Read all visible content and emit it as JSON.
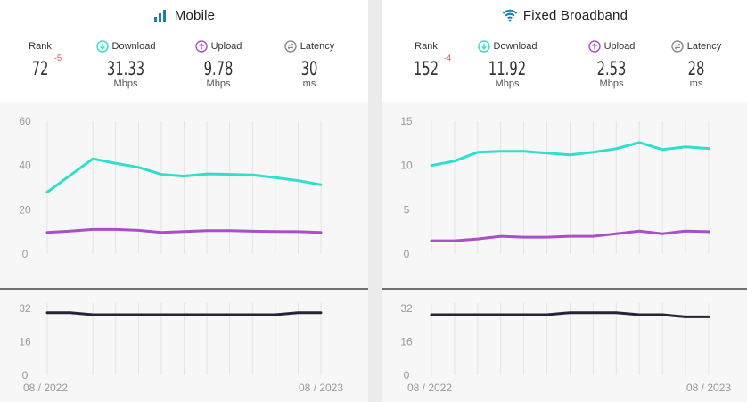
{
  "panels": [
    {
      "title": "Mobile",
      "title_icon": "signal-bars-icon",
      "rank": {
        "label": "Rank",
        "value": "72",
        "change": "-5"
      },
      "download": {
        "label": "Download",
        "value": "31.33",
        "unit": "Mbps",
        "icon": "download-arrow-icon"
      },
      "upload": {
        "label": "Upload",
        "value": "9.78",
        "unit": "Mbps",
        "icon": "upload-arrow-icon"
      },
      "latency": {
        "label": "Latency",
        "value": "30",
        "unit": "ms",
        "icon": "latency-arrows-icon"
      },
      "x_start_label": "08 / 2022",
      "x_end_label": "08 / 2023"
    },
    {
      "title": "Fixed Broadband",
      "title_icon": "wifi-icon",
      "rank": {
        "label": "Rank",
        "value": "152",
        "change": "-4"
      },
      "download": {
        "label": "Download",
        "value": "11.92",
        "unit": "Mbps",
        "icon": "download-arrow-icon"
      },
      "upload": {
        "label": "Upload",
        "value": "2.53",
        "unit": "Mbps",
        "icon": "upload-arrow-icon"
      },
      "latency": {
        "label": "Latency",
        "value": "28",
        "unit": "ms",
        "icon": "latency-arrows-icon"
      },
      "x_start_label": "08 / 2022",
      "x_end_label": "08 / 2023"
    }
  ],
  "colors": {
    "download": "#2ee0cc",
    "upload": "#a84fc9",
    "latency": "#232538",
    "rank_change": "#e0494a",
    "title_icon": "#1a7fb0"
  },
  "chart_data": [
    {
      "type": "line",
      "panel": "Mobile",
      "x": [
        "08 / 2022",
        "",
        "",
        "",
        "",
        "",
        "",
        "",
        "",
        "",
        "",
        "",
        "08 / 2023"
      ],
      "ylim": [
        0,
        60
      ],
      "yticks": [
        0,
        20,
        40,
        60
      ],
      "grid": true,
      "series": [
        {
          "name": "Download",
          "values": [
            28.0,
            35.5,
            43.0,
            41.0,
            39.2,
            36.0,
            35.2,
            36.2,
            36.0,
            35.7,
            34.5,
            33.2,
            31.33
          ]
        },
        {
          "name": "Upload",
          "values": [
            9.8,
            10.4,
            11.1,
            11.1,
            10.7,
            9.8,
            10.2,
            10.6,
            10.6,
            10.3,
            10.2,
            10.1,
            9.78
          ]
        }
      ],
      "latency_chart": {
        "ylim": [
          0,
          32
        ],
        "yticks": [
          0,
          16,
          32
        ],
        "series": [
          {
            "name": "Latency",
            "values": [
              30,
              30,
              29,
              29,
              29,
              29,
              29,
              29,
              29,
              29,
              29,
              30,
              30
            ]
          }
        ]
      }
    },
    {
      "type": "line",
      "panel": "Fixed Broadband",
      "x": [
        "08 / 2022",
        "",
        "",
        "",
        "",
        "",
        "",
        "",
        "",
        "",
        "",
        "",
        "08 / 2023"
      ],
      "ylim": [
        0,
        15
      ],
      "yticks": [
        0,
        5,
        10,
        15
      ],
      "grid": true,
      "series": [
        {
          "name": "Download",
          "values": [
            10.0,
            10.5,
            11.5,
            11.6,
            11.6,
            11.4,
            11.2,
            11.5,
            11.9,
            12.6,
            11.8,
            12.1,
            11.92
          ]
        },
        {
          "name": "Upload",
          "values": [
            1.5,
            1.5,
            1.7,
            2.0,
            1.9,
            1.9,
            2.0,
            2.0,
            2.3,
            2.6,
            2.3,
            2.6,
            2.53
          ]
        }
      ],
      "latency_chart": {
        "ylim": [
          0,
          32
        ],
        "yticks": [
          0,
          16,
          32
        ],
        "series": [
          {
            "name": "Latency",
            "values": [
              29,
              29,
              29,
              29,
              29,
              29,
              30,
              30,
              30,
              29,
              29,
              28,
              28
            ]
          }
        ]
      }
    }
  ]
}
